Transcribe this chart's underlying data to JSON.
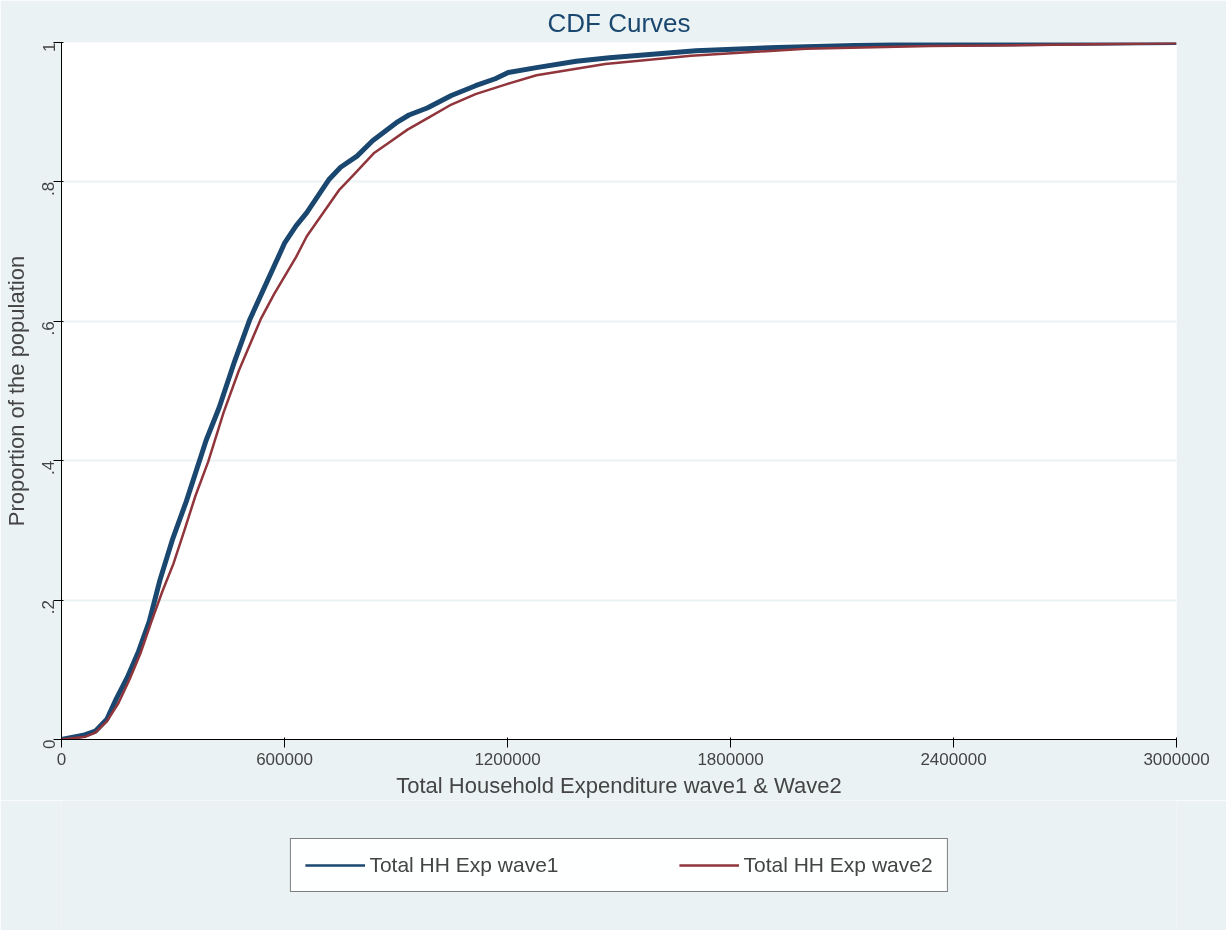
{
  "chart_data": {
    "type": "line",
    "title": "CDF Curves",
    "xlabel": "Total Household Expenditure wave1 & Wave2",
    "ylabel": "Proportion of the population",
    "xlim": [
      0,
      3000000
    ],
    "xticks": [
      0,
      600000,
      1200000,
      1800000,
      2400000,
      3000000
    ],
    "ylim": [
      0,
      1
    ],
    "yticks": [
      0,
      {
        "value": 0.2,
        "label": ".2"
      },
      {
        "value": 0.4,
        "label": ".4"
      },
      {
        "value": 0.6,
        "label": ".6"
      },
      {
        "value": 0.8,
        "label": ".8"
      },
      1
    ],
    "grid": "y",
    "legend": "bottom",
    "line_style": "solid",
    "marker": "none",
    "series": [
      {
        "name": "Total HH Exp wave1",
        "color": "#1a476f",
        "x": [
          0,
          59000,
          91000,
          122000,
          148000,
          177000,
          207000,
          236000,
          265000,
          298000,
          336000,
          389000,
          424000,
          466000,
          507000,
          542000,
          601000,
          631000,
          660000,
          719000,
          751000,
          795000,
          837000,
          901000,
          935000,
          984000,
          1049000,
          1114000,
          1167000,
          1202000,
          1278000,
          1385000,
          1474000,
          1707000,
          1926000,
          2235000,
          2518000,
          3000000
        ],
        "values": [
          0,
          0.006,
          0.012,
          0.029,
          0.059,
          0.089,
          0.126,
          0.169,
          0.229,
          0.286,
          0.342,
          0.429,
          0.476,
          0.543,
          0.603,
          0.644,
          0.713,
          0.737,
          0.756,
          0.803,
          0.821,
          0.837,
          0.859,
          0.885,
          0.896,
          0.906,
          0.924,
          0.938,
          0.948,
          0.957,
          0.964,
          0.973,
          0.978,
          0.988,
          0.993,
          0.997,
          0.998,
          1.0
        ]
      },
      {
        "name": "Total HH Exp wave2",
        "color": "#90353b",
        "x": [
          0,
          65000,
          91000,
          122000,
          153000,
          183000,
          212000,
          242000,
          271000,
          301000,
          330000,
          360000,
          395000,
          436000,
          477000,
          536000,
          572000,
          631000,
          660000,
          748000,
          784000,
          840000,
          872000,
          931000,
          990000,
          1049000,
          1114000,
          1196000,
          1278000,
          1463000,
          1694000,
          2003000,
          2338000,
          2724000,
          3000000
        ],
        "values": [
          0,
          0.004,
          0.01,
          0.026,
          0.052,
          0.086,
          0.123,
          0.169,
          0.212,
          0.252,
          0.299,
          0.349,
          0.399,
          0.469,
          0.529,
          0.603,
          0.639,
          0.692,
          0.722,
          0.789,
          0.809,
          0.841,
          0.853,
          0.875,
          0.893,
          0.911,
          0.926,
          0.94,
          0.953,
          0.969,
          0.981,
          0.991,
          0.995,
          0.997,
          0.999
        ]
      }
    ]
  }
}
